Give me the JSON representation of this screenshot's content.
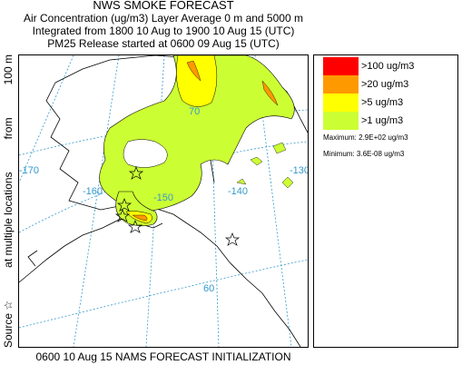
{
  "title": "NWS SMOKE FORECAST",
  "subtitle1": "Air Concentration (ug/m3) Layer Average    0 m and  5000 m",
  "subtitle2": "Integrated from 1800 10 Aug to 1900 10 Aug 15 (UTC)",
  "subtitle3": "PM25 Release started at 0600 09 Aug 15 (UTC)",
  "side": {
    "source": "Source ☆",
    "locations": "at multiple locations",
    "from": "from",
    "height": "100 m"
  },
  "footer": "0600 10 Aug 15 NAMS FORECAST INITIALIZATION",
  "legend": {
    "items": [
      {
        "label": ">100 ug/m3",
        "color": "#ff0000"
      },
      {
        "label": ">20 ug/m3",
        "color": "#ff9900"
      },
      {
        "label": ">5 ug/m3",
        "color": "#ffff00"
      },
      {
        "label": ">1 ug/m3",
        "color": "#ccff33"
      }
    ],
    "maximum": "Maximum: 2.9E+02 ug/m3",
    "minimum": "Minimum: 3.6E-08 ug/m3"
  },
  "grid_labels": {
    "lon170": "-170",
    "lon160": "-160",
    "lon150": "-150",
    "lon140": "-140",
    "lon130": "-130",
    "lat70": "70",
    "lat60": "60"
  },
  "colors": {
    "land": "#ffffff",
    "coast": "#000000",
    "grid": "#3399cc",
    "lowest": "#ccff33"
  }
}
